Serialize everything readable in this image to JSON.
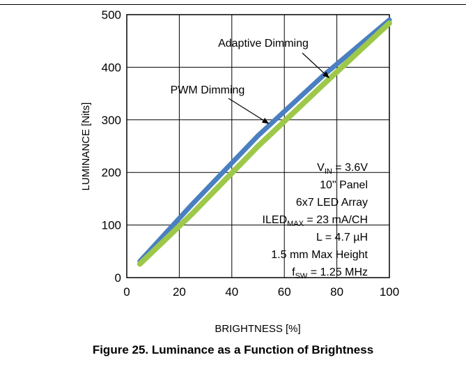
{
  "figure_caption": "Figure 25. Luminance as a Function of Brightness",
  "chart_data": {
    "type": "line",
    "xlabel": "BRIGHTNESS [%]",
    "ylabel": "LUMINANCE [Nits]",
    "xlim": [
      0,
      100
    ],
    "ylim": [
      0,
      500
    ],
    "xticks": [
      "0",
      "20",
      "40",
      "60",
      "80",
      "100"
    ],
    "yticks": [
      "0",
      "100",
      "200",
      "300",
      "400",
      "500"
    ],
    "grid": true,
    "series": [
      {
        "name": "Adaptive Dimming",
        "color": "#4a7fc1",
        "x": [
          5,
          25,
          50,
          75,
          100
        ],
        "y": [
          31,
          140,
          270,
          385,
          490
        ]
      },
      {
        "name": "PWM Dimming",
        "color": "#9dc84a",
        "x": [
          5,
          25,
          50,
          75,
          100
        ],
        "y": [
          26,
          122,
          250,
          368,
          484
        ]
      }
    ],
    "annotations": [
      {
        "text": "Adaptive Dimming",
        "points_to_x": 77,
        "points_to_y": 380
      },
      {
        "text": "PWM Dimming",
        "points_to_x": 54,
        "points_to_y": 293
      }
    ],
    "conditions": [
      {
        "base": "V",
        "sub": "IN",
        "rest": " = 3.6V"
      },
      {
        "base": "10\" Panel",
        "sub": "",
        "rest": ""
      },
      {
        "base": "6x7 LED Array",
        "sub": "",
        "rest": ""
      },
      {
        "base": "ILED",
        "sub": "MAX",
        "rest": " = 23 mA/CH"
      },
      {
        "base": "L = 4.7 µH",
        "sub": "",
        "rest": ""
      },
      {
        "base": "1.5 mm Max Height",
        "sub": "",
        "rest": ""
      },
      {
        "base": "f",
        "sub": "SW",
        "rest": " = 1.25 MHz"
      }
    ]
  }
}
